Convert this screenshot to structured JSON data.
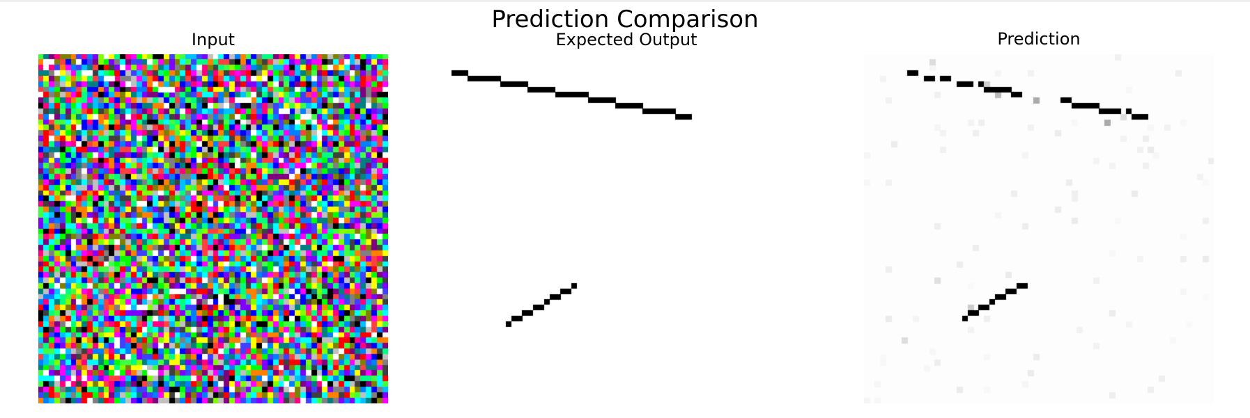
{
  "figure": {
    "title": "Prediction Comparison"
  },
  "panels": [
    {
      "title": "Input",
      "content": "random multicolor noise pixel grid with faint white line segments"
    },
    {
      "title": "Expected Output",
      "content": "black line segments on white"
    },
    {
      "title": "Prediction",
      "content": "black line segments on near-white with light gray speckles"
    }
  ],
  "colors": {
    "background": "#ffffff",
    "line": "#000000",
    "prediction_background": "#fdfdfd",
    "noise_palette": [
      "#ff0000",
      "#00ff00",
      "#0000ff",
      "#ffff00",
      "#ff00ff",
      "#00ffff",
      "#ff8000",
      "#8000ff",
      "#00ff80",
      "#ff0080",
      "#0080ff",
      "#80ff00",
      "#008080",
      "#800080",
      "#808000",
      "#000000",
      "#404040",
      "#808080",
      "#c0c0c0",
      "#ffffff",
      "#00c0ff",
      "#ff4040",
      "#40ff40",
      "#4040ff"
    ]
  }
}
